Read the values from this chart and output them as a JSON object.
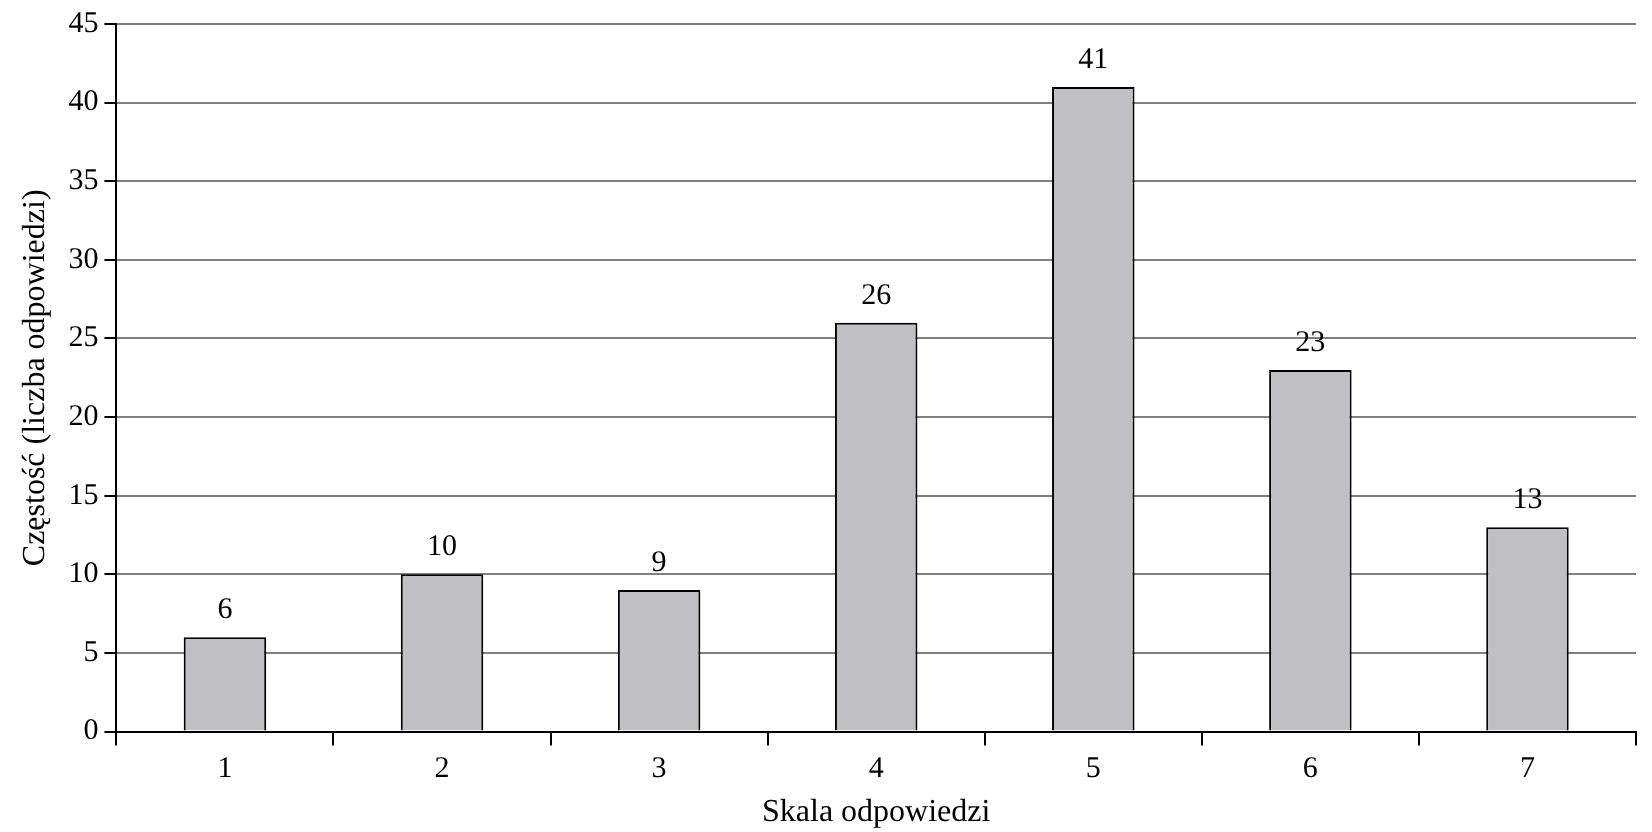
{
  "chart_data": {
    "type": "bar",
    "xlabel": "Skala odpowiedzi",
    "ylabel": "Częstość (liczba odpowiedzi)",
    "categories": [
      "1",
      "2",
      "3",
      "4",
      "5",
      "6",
      "7"
    ],
    "values": [
      6,
      10,
      9,
      26,
      41,
      23,
      13
    ],
    "color": "#c0c0c4",
    "ylim": [
      0,
      45
    ],
    "yticks": [
      0,
      5,
      10,
      15,
      20,
      25,
      30,
      35,
      40,
      45
    ],
    "grid": "y",
    "data_labels": true,
    "legend": false
  }
}
